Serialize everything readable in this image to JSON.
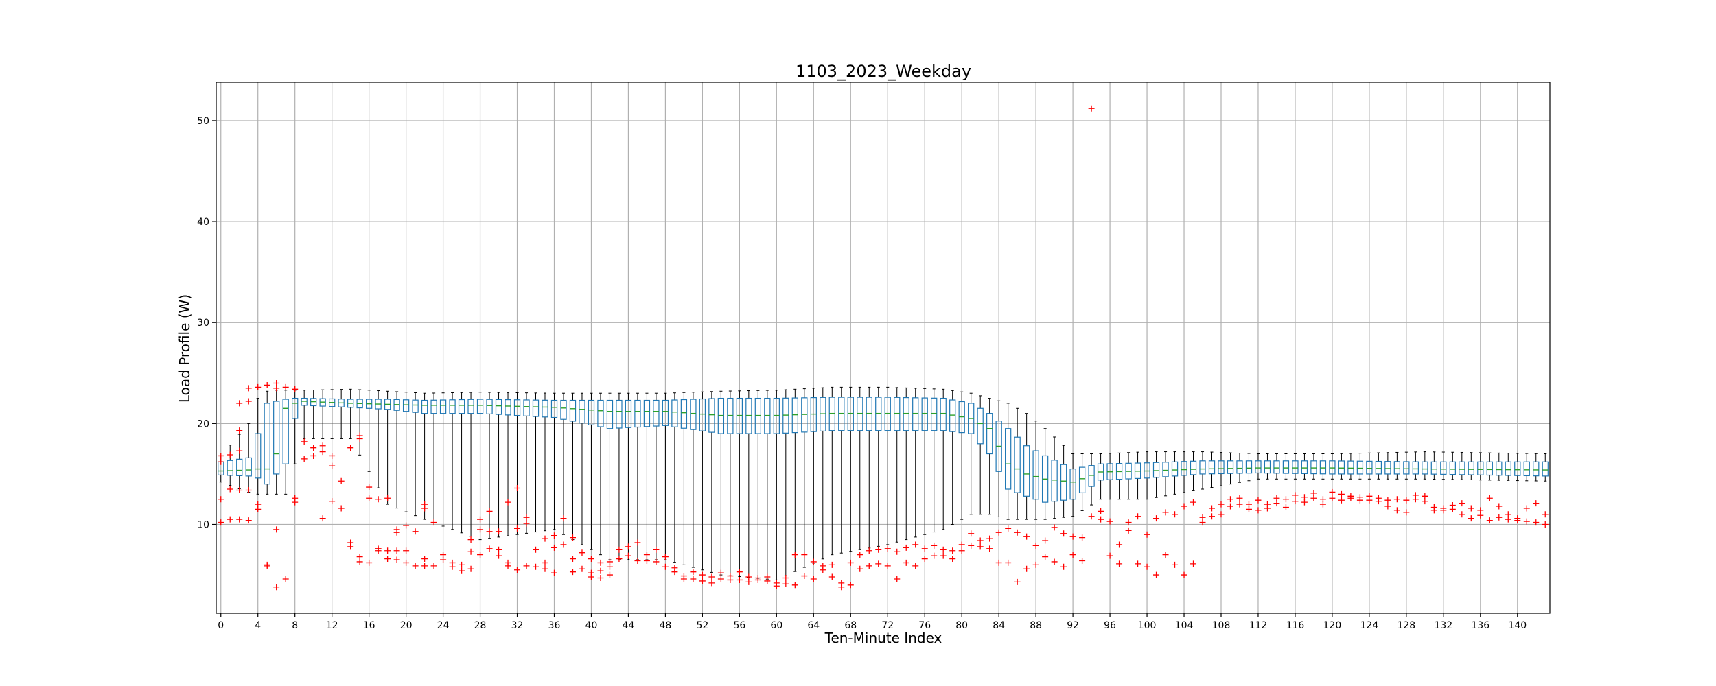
{
  "chart_data": {
    "type": "box",
    "title": "1103_2023_Weekday",
    "xlabel": "Ten-Minute Index",
    "ylabel": "Load Profile (W)",
    "xlim": [
      -0.5,
      143.5
    ],
    "ylim": [
      1.2,
      53.8
    ],
    "xticks": [
      0,
      4,
      8,
      12,
      16,
      20,
      24,
      28,
      32,
      36,
      40,
      44,
      48,
      52,
      56,
      60,
      64,
      68,
      72,
      76,
      80,
      84,
      88,
      92,
      96,
      100,
      104,
      108,
      112,
      116,
      120,
      124,
      128,
      132,
      136,
      140
    ],
    "yticks": [
      10,
      20,
      30,
      40,
      50
    ],
    "grid": true,
    "colors": {
      "box": "#1f77b4",
      "median": "#2ca02c",
      "whisker": "#000000",
      "flier": "#ff0000",
      "grid": "#b0b0b0"
    },
    "notable_outlier": {
      "x": 94,
      "y": 51.2
    },
    "profile_points": [
      {
        "x": 0,
        "q1": 14.9,
        "median": 15.3,
        "q3": 16.2,
        "low": 14.2,
        "high": 16.8
      },
      {
        "x": 3,
        "q1": 14.8,
        "median": 15.4,
        "q3": 16.6,
        "low": 13.2,
        "high": 20.0
      },
      {
        "x": 4,
        "q1": 14.6,
        "median": 15.5,
        "q3": 19.0,
        "low": 13.0,
        "high": 22.5
      },
      {
        "x": 5,
        "q1": 14.0,
        "median": 15.5,
        "q3": 22.0,
        "low": 13.0,
        "high": 23.2
      },
      {
        "x": 6,
        "q1": 15.0,
        "median": 17.0,
        "q3": 22.2,
        "low": 13.0,
        "high": 23.3
      },
      {
        "x": 7,
        "q1": 16.0,
        "median": 21.5,
        "q3": 22.4,
        "low": 13.0,
        "high": 23.3
      },
      {
        "x": 8,
        "q1": 20.5,
        "median": 22.0,
        "q3": 22.5,
        "low": 16.0,
        "high": 23.3
      },
      {
        "x": 9,
        "q1": 21.8,
        "median": 22.2,
        "q3": 22.5,
        "low": 18.5,
        "high": 23.3
      },
      {
        "x": 14,
        "q1": 21.6,
        "median": 22.0,
        "q3": 22.4,
        "low": 18.5,
        "high": 23.4
      },
      {
        "x": 18,
        "q1": 21.4,
        "median": 21.9,
        "q3": 22.4,
        "low": 12.0,
        "high": 23.2
      },
      {
        "x": 22,
        "q1": 21.0,
        "median": 21.8,
        "q3": 22.3,
        "low": 10.5,
        "high": 23.0
      },
      {
        "x": 28,
        "q1": 21.0,
        "median": 21.8,
        "q3": 22.4,
        "low": 8.5,
        "high": 23.1
      },
      {
        "x": 36,
        "q1": 20.6,
        "median": 21.6,
        "q3": 22.3,
        "low": 9.5,
        "high": 23.0
      },
      {
        "x": 42,
        "q1": 19.5,
        "median": 21.2,
        "q3": 22.3,
        "low": 6.5,
        "high": 23.0
      },
      {
        "x": 48,
        "q1": 19.8,
        "median": 21.2,
        "q3": 22.3,
        "low": 6.5,
        "high": 23.0
      },
      {
        "x": 54,
        "q1": 19.0,
        "median": 20.8,
        "q3": 22.5,
        "low": 5.0,
        "high": 23.2
      },
      {
        "x": 60,
        "q1": 19.0,
        "median": 20.8,
        "q3": 22.5,
        "low": 4.5,
        "high": 23.3
      },
      {
        "x": 66,
        "q1": 19.3,
        "median": 21.0,
        "q3": 22.6,
        "low": 7.0,
        "high": 23.6
      },
      {
        "x": 72,
        "q1": 19.3,
        "median": 21.0,
        "q3": 22.6,
        "low": 8.0,
        "high": 23.6
      },
      {
        "x": 78,
        "q1": 19.3,
        "median": 21.0,
        "q3": 22.5,
        "low": 9.5,
        "high": 23.4
      },
      {
        "x": 81,
        "q1": 19.0,
        "median": 20.5,
        "q3": 22.0,
        "low": 11.0,
        "high": 23.0
      },
      {
        "x": 83,
        "q1": 17.0,
        "median": 19.5,
        "q3": 21.0,
        "low": 11.0,
        "high": 22.5
      },
      {
        "x": 85,
        "q1": 13.5,
        "median": 16.0,
        "q3": 19.5,
        "low": 10.5,
        "high": 22.0
      },
      {
        "x": 87,
        "q1": 12.8,
        "median": 15.0,
        "q3": 17.8,
        "low": 10.5,
        "high": 21.0
      },
      {
        "x": 89,
        "q1": 12.2,
        "median": 14.5,
        "q3": 16.8,
        "low": 10.5,
        "high": 19.5
      },
      {
        "x": 92,
        "q1": 12.5,
        "median": 14.2,
        "q3": 15.5,
        "low": 10.8,
        "high": 17.0
      },
      {
        "x": 95,
        "q1": 14.4,
        "median": 15.2,
        "q3": 16.0,
        "low": 12.5,
        "high": 17.0
      },
      {
        "x": 100,
        "q1": 14.6,
        "median": 15.3,
        "q3": 16.1,
        "low": 12.5,
        "high": 17.2
      },
      {
        "x": 106,
        "q1": 15.0,
        "median": 15.5,
        "q3": 16.3,
        "low": 13.5,
        "high": 17.2
      },
      {
        "x": 112,
        "q1": 15.1,
        "median": 15.6,
        "q3": 16.3,
        "low": 14.5,
        "high": 17.0
      },
      {
        "x": 120,
        "q1": 15.0,
        "median": 15.6,
        "q3": 16.3,
        "low": 14.5,
        "high": 17.0
      },
      {
        "x": 130,
        "q1": 15.0,
        "median": 15.5,
        "q3": 16.2,
        "low": 14.5,
        "high": 17.2
      },
      {
        "x": 143,
        "q1": 14.8,
        "median": 15.4,
        "q3": 16.2,
        "low": 14.3,
        "high": 17.0
      }
    ],
    "fliers": [
      [
        0,
        10.2
      ],
      [
        0,
        12.5
      ],
      [
        0,
        16.8
      ],
      [
        0,
        16.2
      ],
      [
        1,
        10.5
      ],
      [
        1,
        13.5
      ],
      [
        1,
        16.9
      ],
      [
        2,
        10.5
      ],
      [
        2,
        13.4
      ],
      [
        2,
        17.3
      ],
      [
        2,
        22.0
      ],
      [
        2,
        19.3
      ],
      [
        3,
        10.4
      ],
      [
        3,
        13.4
      ],
      [
        3,
        23.5
      ],
      [
        3,
        22.2
      ],
      [
        4,
        12.0
      ],
      [
        4,
        11.5
      ],
      [
        4,
        23.6
      ],
      [
        5,
        6.0
      ],
      [
        5,
        5.9
      ],
      [
        5,
        23.8
      ],
      [
        6,
        9.5
      ],
      [
        6,
        3.8
      ],
      [
        6,
        24.0
      ],
      [
        6,
        23.5
      ],
      [
        7,
        4.6
      ],
      [
        7,
        23.6
      ],
      [
        8,
        12.2
      ],
      [
        8,
        12.6
      ],
      [
        8,
        23.4
      ],
      [
        9,
        16.5
      ],
      [
        9,
        18.2
      ],
      [
        10,
        16.8
      ],
      [
        10,
        17.6
      ],
      [
        11,
        10.6
      ],
      [
        11,
        17.2
      ],
      [
        11,
        17.8
      ],
      [
        12,
        15.8
      ],
      [
        12,
        16.8
      ],
      [
        12,
        12.3
      ],
      [
        13,
        14.3
      ],
      [
        13,
        11.6
      ],
      [
        14,
        8.2
      ],
      [
        14,
        7.8
      ],
      [
        14,
        17.6
      ],
      [
        15,
        6.8
      ],
      [
        15,
        6.3
      ],
      [
        15,
        18.8
      ],
      [
        15,
        18.5
      ],
      [
        16,
        13.7
      ],
      [
        16,
        12.6
      ],
      [
        16,
        6.2
      ],
      [
        17,
        7.6
      ],
      [
        17,
        7.4
      ],
      [
        17,
        12.5
      ],
      [
        18,
        7.4
      ],
      [
        18,
        6.6
      ],
      [
        18,
        12.6
      ],
      [
        19,
        9.5
      ],
      [
        19,
        9.2
      ],
      [
        19,
        7.4
      ],
      [
        19,
        6.5
      ],
      [
        20,
        9.9
      ],
      [
        20,
        7.4
      ],
      [
        20,
        6.2
      ],
      [
        21,
        9.3
      ],
      [
        21,
        5.9
      ],
      [
        22,
        12.0
      ],
      [
        22,
        11.6
      ],
      [
        22,
        6.6
      ],
      [
        22,
        5.9
      ],
      [
        23,
        10.2
      ],
      [
        23,
        5.9
      ],
      [
        24,
        7.0
      ],
      [
        24,
        6.5
      ],
      [
        25,
        6.2
      ],
      [
        25,
        5.8
      ],
      [
        26,
        6.0
      ],
      [
        26,
        5.4
      ],
      [
        27,
        8.5
      ],
      [
        27,
        7.3
      ],
      [
        27,
        5.6
      ],
      [
        28,
        10.5
      ],
      [
        28,
        9.5
      ],
      [
        28,
        7.0
      ],
      [
        29,
        11.3
      ],
      [
        29,
        9.3
      ],
      [
        29,
        7.6
      ],
      [
        30,
        9.3
      ],
      [
        30,
        7.5
      ],
      [
        30,
        6.9
      ],
      [
        31,
        12.2
      ],
      [
        31,
        6.2
      ],
      [
        31,
        5.9
      ],
      [
        32,
        13.6
      ],
      [
        32,
        9.6
      ],
      [
        32,
        5.5
      ],
      [
        33,
        10.7
      ],
      [
        33,
        10.1
      ],
      [
        33,
        5.9
      ],
      [
        34,
        7.5
      ],
      [
        34,
        5.8
      ],
      [
        35,
        8.6
      ],
      [
        35,
        6.2
      ],
      [
        35,
        5.6
      ],
      [
        36,
        8.9
      ],
      [
        36,
        7.7
      ],
      [
        36,
        5.2
      ],
      [
        37,
        10.6
      ],
      [
        37,
        8.0
      ],
      [
        38,
        8.7
      ],
      [
        38,
        6.6
      ],
      [
        38,
        5.3
      ],
      [
        39,
        7.2
      ],
      [
        39,
        5.6
      ],
      [
        40,
        6.6
      ],
      [
        40,
        5.2
      ],
      [
        40,
        4.8
      ],
      [
        41,
        6.2
      ],
      [
        41,
        5.4
      ],
      [
        41,
        4.7
      ],
      [
        42,
        6.3
      ],
      [
        42,
        5.8
      ],
      [
        42,
        5.0
      ],
      [
        43,
        7.5
      ],
      [
        43,
        6.6
      ],
      [
        44,
        7.8
      ],
      [
        44,
        6.9
      ],
      [
        45,
        8.2
      ],
      [
        45,
        6.4
      ],
      [
        46,
        7.0
      ],
      [
        46,
        6.4
      ],
      [
        47,
        7.5
      ],
      [
        47,
        6.3
      ],
      [
        48,
        6.8
      ],
      [
        48,
        5.8
      ],
      [
        49,
        5.7
      ],
      [
        49,
        5.3
      ],
      [
        50,
        4.9
      ],
      [
        50,
        4.6
      ],
      [
        51,
        5.3
      ],
      [
        51,
        4.6
      ],
      [
        52,
        5.0
      ],
      [
        52,
        4.4
      ],
      [
        53,
        4.8
      ],
      [
        53,
        4.2
      ],
      [
        54,
        5.2
      ],
      [
        54,
        4.6
      ],
      [
        55,
        4.9
      ],
      [
        55,
        4.5
      ],
      [
        56,
        5.3
      ],
      [
        56,
        4.5
      ],
      [
        57,
        4.8
      ],
      [
        57,
        4.3
      ],
      [
        58,
        4.7
      ],
      [
        58,
        4.5
      ],
      [
        59,
        4.8
      ],
      [
        59,
        4.4
      ],
      [
        60,
        4.2
      ],
      [
        60,
        3.9
      ],
      [
        61,
        4.7
      ],
      [
        61,
        4.1
      ],
      [
        62,
        7.0
      ],
      [
        62,
        4.0
      ],
      [
        63,
        7.0
      ],
      [
        63,
        4.9
      ],
      [
        64,
        6.3
      ],
      [
        64,
        4.6
      ],
      [
        65,
        5.9
      ],
      [
        65,
        5.5
      ],
      [
        66,
        6.0
      ],
      [
        66,
        4.8
      ],
      [
        67,
        4.2
      ],
      [
        67,
        3.8
      ],
      [
        68,
        6.2
      ],
      [
        68,
        4.0
      ],
      [
        69,
        7.0
      ],
      [
        69,
        5.6
      ],
      [
        70,
        7.4
      ],
      [
        70,
        5.9
      ],
      [
        71,
        7.5
      ],
      [
        71,
        6.1
      ],
      [
        72,
        7.6
      ],
      [
        72,
        5.9
      ],
      [
        73,
        7.3
      ],
      [
        73,
        4.6
      ],
      [
        74,
        7.7
      ],
      [
        74,
        6.2
      ],
      [
        75,
        8.0
      ],
      [
        75,
        5.9
      ],
      [
        76,
        7.6
      ],
      [
        76,
        6.6
      ],
      [
        77,
        7.9
      ],
      [
        77,
        6.9
      ],
      [
        78,
        7.5
      ],
      [
        78,
        6.9
      ],
      [
        79,
        7.4
      ],
      [
        79,
        6.6
      ],
      [
        80,
        8.0
      ],
      [
        80,
        7.4
      ],
      [
        81,
        9.1
      ],
      [
        81,
        7.9
      ],
      [
        82,
        8.4
      ],
      [
        82,
        7.8
      ],
      [
        83,
        8.6
      ],
      [
        83,
        7.6
      ],
      [
        84,
        9.2
      ],
      [
        84,
        6.2
      ],
      [
        85,
        9.6
      ],
      [
        85,
        6.2
      ],
      [
        86,
        9.2
      ],
      [
        86,
        4.3
      ],
      [
        87,
        8.8
      ],
      [
        87,
        5.6
      ],
      [
        88,
        7.9
      ],
      [
        88,
        6.0
      ],
      [
        89,
        8.4
      ],
      [
        89,
        6.8
      ],
      [
        90,
        9.7
      ],
      [
        90,
        6.3
      ],
      [
        91,
        9.1
      ],
      [
        91,
        5.8
      ],
      [
        92,
        8.8
      ],
      [
        92,
        7.0
      ],
      [
        93,
        8.7
      ],
      [
        93,
        6.4
      ],
      [
        94,
        10.8
      ],
      [
        94,
        51.2
      ],
      [
        95,
        11.3
      ],
      [
        95,
        10.5
      ],
      [
        96,
        10.3
      ],
      [
        96,
        6.9
      ],
      [
        97,
        8.0
      ],
      [
        97,
        6.1
      ],
      [
        98,
        10.2
      ],
      [
        98,
        9.4
      ],
      [
        99,
        10.8
      ],
      [
        99,
        6.1
      ],
      [
        100,
        9.0
      ],
      [
        100,
        5.8
      ],
      [
        101,
        10.6
      ],
      [
        101,
        5.0
      ],
      [
        102,
        11.2
      ],
      [
        102,
        7.0
      ],
      [
        103,
        11.0
      ],
      [
        103,
        6.0
      ],
      [
        104,
        11.8
      ],
      [
        104,
        5.0
      ],
      [
        105,
        12.2
      ],
      [
        105,
        6.1
      ],
      [
        106,
        10.2
      ],
      [
        106,
        10.7
      ],
      [
        107,
        11.6
      ],
      [
        107,
        10.8
      ],
      [
        108,
        12.0
      ],
      [
        108,
        11.0
      ],
      [
        109,
        12.5
      ],
      [
        109,
        11.8
      ],
      [
        110,
        12.6
      ],
      [
        110,
        12.0
      ],
      [
        111,
        12.0
      ],
      [
        111,
        11.5
      ],
      [
        112,
        12.4
      ],
      [
        112,
        11.4
      ],
      [
        113,
        12.0
      ],
      [
        113,
        11.6
      ],
      [
        114,
        12.6
      ],
      [
        114,
        12.1
      ],
      [
        115,
        12.5
      ],
      [
        115,
        11.7
      ],
      [
        116,
        12.9
      ],
      [
        116,
        12.3
      ],
      [
        117,
        12.7
      ],
      [
        117,
        12.2
      ],
      [
        118,
        13.1
      ],
      [
        118,
        12.6
      ],
      [
        119,
        12.5
      ],
      [
        119,
        12.0
      ],
      [
        120,
        13.2
      ],
      [
        120,
        12.6
      ],
      [
        121,
        13.0
      ],
      [
        121,
        12.4
      ],
      [
        122,
        12.8
      ],
      [
        122,
        12.6
      ],
      [
        123,
        12.7
      ],
      [
        123,
        12.4
      ],
      [
        124,
        12.8
      ],
      [
        124,
        12.4
      ],
      [
        125,
        12.6
      ],
      [
        125,
        12.3
      ],
      [
        126,
        12.4
      ],
      [
        126,
        11.8
      ],
      [
        127,
        12.5
      ],
      [
        127,
        11.4
      ],
      [
        128,
        12.4
      ],
      [
        128,
        11.2
      ],
      [
        129,
        12.9
      ],
      [
        129,
        12.5
      ],
      [
        130,
        12.8
      ],
      [
        130,
        12.3
      ],
      [
        131,
        11.7
      ],
      [
        131,
        11.4
      ],
      [
        132,
        11.6
      ],
      [
        132,
        11.4
      ],
      [
        133,
        11.9
      ],
      [
        133,
        11.5
      ],
      [
        134,
        12.1
      ],
      [
        134,
        11.0
      ],
      [
        135,
        11.6
      ],
      [
        135,
        10.6
      ],
      [
        136,
        11.4
      ],
      [
        136,
        10.9
      ],
      [
        137,
        12.6
      ],
      [
        137,
        10.4
      ],
      [
        138,
        11.8
      ],
      [
        138,
        10.7
      ],
      [
        139,
        11.0
      ],
      [
        139,
        10.5
      ],
      [
        140,
        10.6
      ],
      [
        140,
        10.4
      ],
      [
        141,
        11.6
      ],
      [
        141,
        10.3
      ],
      [
        142,
        12.1
      ],
      [
        142,
        10.2
      ],
      [
        143,
        11.0
      ],
      [
        143,
        10.0
      ]
    ]
  }
}
